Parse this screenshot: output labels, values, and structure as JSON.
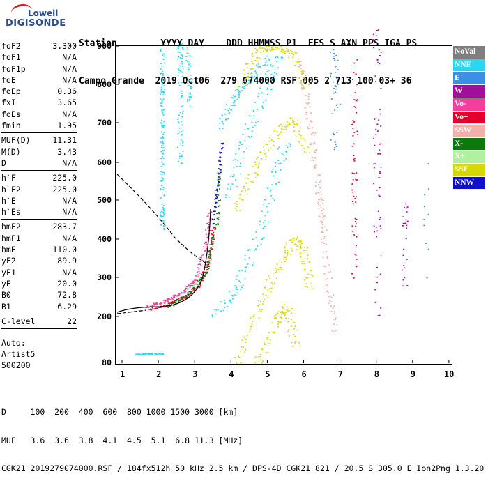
{
  "logo": {
    "line1": "Lowell",
    "line2": "DIGISONDE"
  },
  "header": {
    "line1": "Station        YYYY DAY    DDD HHMMSS P1  FFS S AXN PPS IGA PS",
    "line2": "Campo Grande  2019 Oct06  279 074000 RSF 005 2 713 100 03+ 36"
  },
  "params": [
    {
      "name": "foF2",
      "value": "3.300"
    },
    {
      "name": "foF1",
      "value": "N/A"
    },
    {
      "name": "foF1p",
      "value": "N/A"
    },
    {
      "name": "foE",
      "value": "N/A"
    },
    {
      "name": "foEp",
      "value": "0.36"
    },
    {
      "name": "fxI",
      "value": "3.65"
    },
    {
      "name": "foEs",
      "value": "N/A"
    },
    {
      "name": "fmin",
      "value": "1.95"
    },
    {
      "sep": true
    },
    {
      "name": "MUF(D)",
      "value": "11.31"
    },
    {
      "name": "M(D)",
      "value": "3.43"
    },
    {
      "name": "D",
      "value": "N/A"
    },
    {
      "sep": true
    },
    {
      "name": "h`F",
      "value": "225.0"
    },
    {
      "name": "h`F2",
      "value": "225.0"
    },
    {
      "name": "h`E",
      "value": "N/A"
    },
    {
      "name": "h`Es",
      "value": "N/A"
    },
    {
      "sep": true
    },
    {
      "name": "hmF2",
      "value": "283.7"
    },
    {
      "name": "hmF1",
      "value": "N/A"
    },
    {
      "name": "hmE",
      "value": "110.0"
    },
    {
      "name": "yF2",
      "value": "89.9"
    },
    {
      "name": "yF1",
      "value": "N/A"
    },
    {
      "name": "yE",
      "value": "20.0"
    },
    {
      "name": "B0",
      "value": "72.8"
    },
    {
      "name": "B1",
      "value": "6.29"
    },
    {
      "sep": true
    },
    {
      "name": "C-level",
      "value": "22"
    },
    {
      "sep": true
    }
  ],
  "auto": {
    "line1": "Auto:",
    "line2": "Artist5",
    "line3": "500200"
  },
  "legend": [
    {
      "label": "NoVal",
      "color": "#7f7f7f"
    },
    {
      "label": "NNE",
      "color": "#2ad6f5"
    },
    {
      "label": "E",
      "color": "#3a8fe6"
    },
    {
      "label": "W",
      "color": "#a0109a"
    },
    {
      "label": "Vo-",
      "color": "#f0409c"
    },
    {
      "label": "Vo+",
      "color": "#e4002c"
    },
    {
      "label": "SSW",
      "color": "#f2b0a8"
    },
    {
      "label": "X-",
      "color": "#0b7a0b"
    },
    {
      "label": "X+",
      "color": "#b0f0a0"
    },
    {
      "label": "SSE",
      "color": "#d8d800"
    },
    {
      "label": "NNW",
      "color": "#1010c8"
    }
  ],
  "y_ticks": [
    "900",
    "800",
    "700",
    "600",
    "500",
    "400",
    "300",
    "200",
    "80"
  ],
  "x_ticks": [
    "1",
    "2",
    "3",
    "4",
    "5",
    "6",
    "7",
    "8",
    "9",
    "10"
  ],
  "footer": {
    "line1": "D     100  200  400  600  800 1000 1500 3000 [km]",
    "line2": "MUF   3.6  3.6  3.8  4.1  4.5  5.1  6.8 11.3 [MHz]",
    "line3": "CGK21_2019279074000.RSF / 184fx512h 50 kHz 2.5 km / DPS-4D CGK21 821 / 20.5 S 305.0 E Ion2Png 1.3.20"
  }
}
